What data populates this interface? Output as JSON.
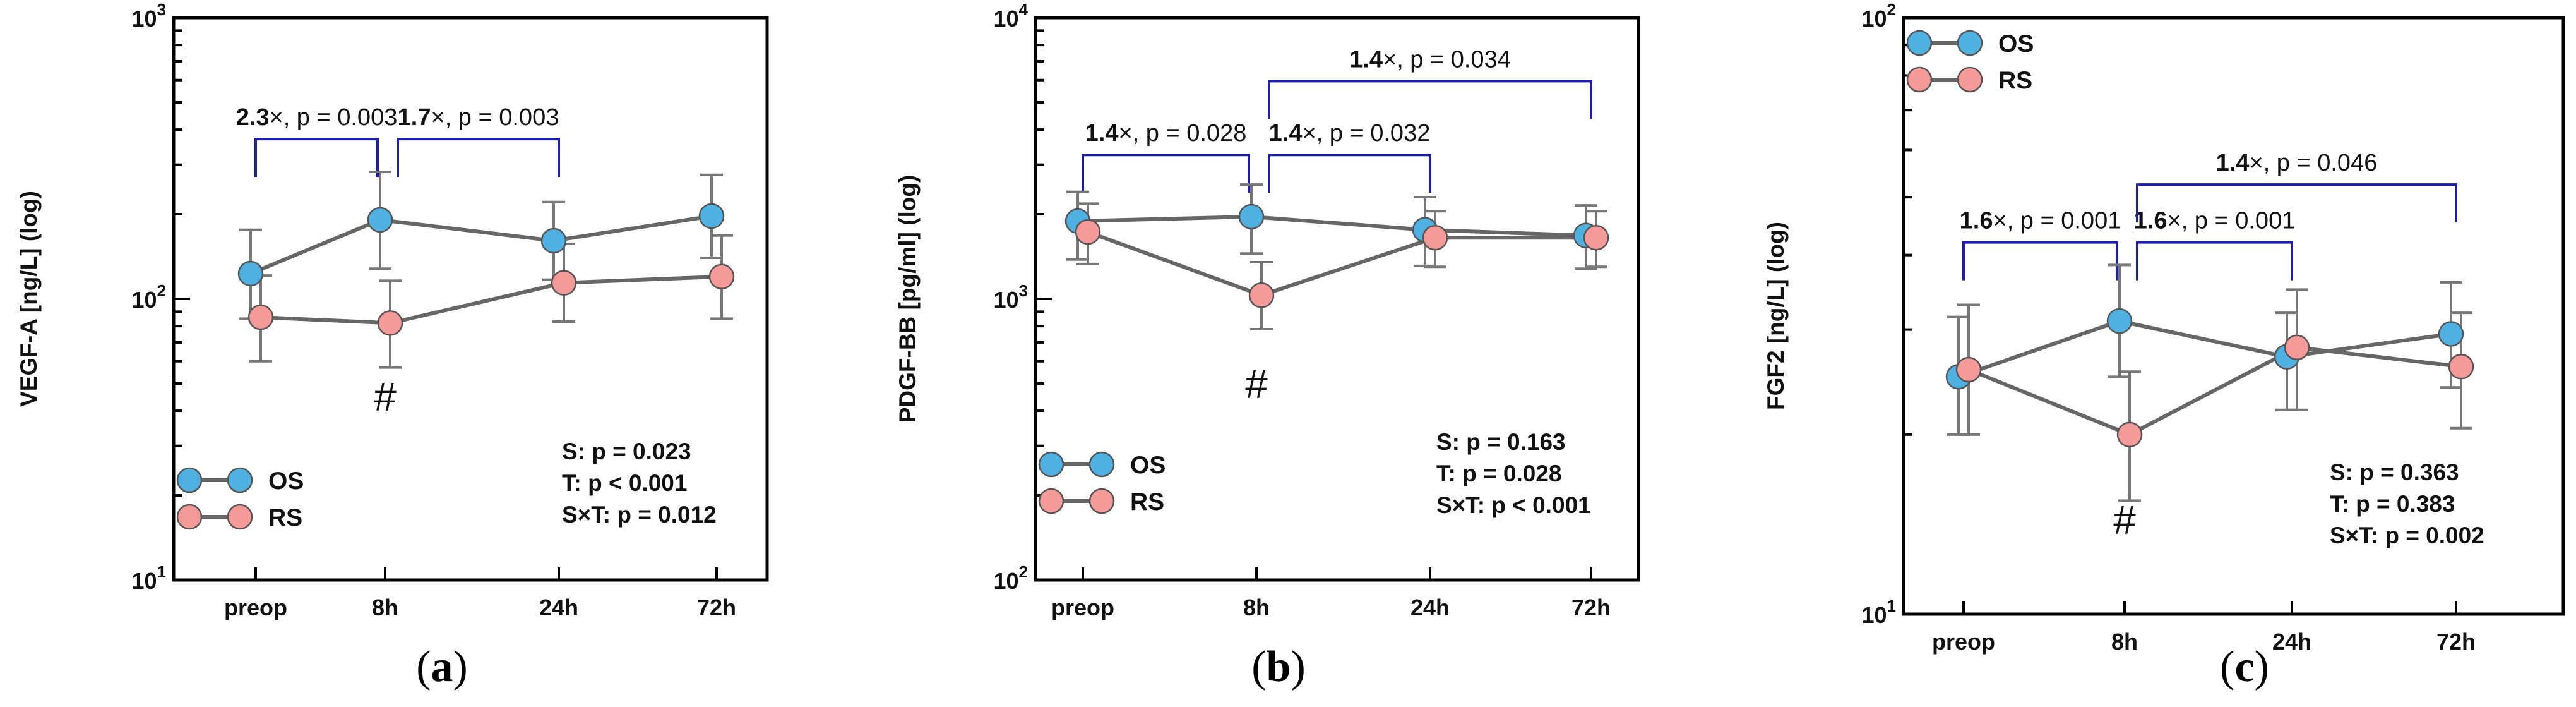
{
  "colors": {
    "OS": "#4fb0e2",
    "RS": "#f49a98",
    "bracket": "#1f1fa5",
    "line": "#666666"
  },
  "chart_data": [
    {
      "type": "line",
      "panel_label": "a",
      "ylabel": "VEGF-A [ng/L] (log)",
      "yscale": "log",
      "ylim": [
        10,
        1000
      ],
      "yticks": [
        {
          "v": 10,
          "b": "10",
          "e": "1"
        },
        {
          "v": 100,
          "b": "10",
          "e": "2"
        },
        {
          "v": 1000,
          "b": "10",
          "e": "3"
        }
      ],
      "categories": [
        "preop",
        "8h",
        "24h",
        "72h"
      ],
      "series": [
        {
          "name": "OS",
          "values": [
            123,
            191,
            161,
            197
          ],
          "err_low": [
            85,
            128,
            117,
            140
          ],
          "err_high": [
            176,
            283,
            221,
            276
          ]
        },
        {
          "name": "RS",
          "values": [
            86,
            82,
            114,
            120
          ],
          "err_low": [
            60,
            57,
            83,
            85
          ],
          "err_high": [
            121,
            116,
            157,
            168
          ]
        }
      ],
      "stats": [
        "S: p = 0.023",
        "T: p < 0.001",
        "S×T: p = 0.012"
      ],
      "legend": [
        "OS",
        "RS"
      ],
      "legend_position": "lower-left",
      "significance": [
        {
          "from": 0,
          "to": 1,
          "fold": "2.3",
          "p": ", p = 0.003",
          "y": 370
        },
        {
          "from": 1,
          "to": 2,
          "fold": "1.7",
          "p": ", p = 0.003",
          "y": 370
        }
      ],
      "hash_marker": {
        "category": "8h",
        "text": "#"
      }
    },
    {
      "type": "line",
      "panel_label": "b",
      "ylabel": "PDGF-BB [pg/ml] (log)",
      "yscale": "log",
      "ylim": [
        100,
        10000
      ],
      "yticks": [
        {
          "v": 100,
          "b": "10",
          "e": "2"
        },
        {
          "v": 1000,
          "b": "10",
          "e": "3"
        },
        {
          "v": 10000,
          "b": "10",
          "e": "4"
        }
      ],
      "categories": [
        "preop",
        "8h",
        "24h",
        "72h"
      ],
      "series": [
        {
          "name": "OS",
          "values": [
            1890,
            1960,
            1760,
            1680
          ],
          "err_low": [
            1380,
            1450,
            1310,
            1280
          ],
          "err_high": [
            2400,
            2550,
            2300,
            2150
          ]
        },
        {
          "name": "RS",
          "values": [
            1730,
            1030,
            1650,
            1650
          ],
          "err_low": [
            1330,
            780,
            1300,
            1300
          ],
          "err_high": [
            2180,
            1350,
            2050,
            2050
          ]
        }
      ],
      "stats": [
        "S: p = 0.163",
        "T: p = 0.028",
        "S×T: p < 0.001"
      ],
      "legend": [
        "OS",
        "RS"
      ],
      "legend_position": "lower-left",
      "significance": [
        {
          "from": 0,
          "to": 1,
          "fold": "1.4",
          "p": ", p = 0.028",
          "y": 3250
        },
        {
          "from": 1,
          "to": 2,
          "fold": "1.4",
          "p": ", p = 0.032",
          "y": 3250
        },
        {
          "from": 1,
          "to": 3,
          "fold": "1.4",
          "p": ", p = 0.034",
          "y": 5950
        }
      ],
      "hash_marker": {
        "category": "8h",
        "text": "#"
      }
    },
    {
      "type": "line",
      "panel_label": "c",
      "ylabel": "FGF2 [ng/L] (log)",
      "yscale": "log",
      "ylim": [
        10,
        100
      ],
      "yticks": [
        {
          "v": 10,
          "b": "10",
          "e": "1"
        },
        {
          "v": 100,
          "b": "10",
          "e": "2"
        }
      ],
      "categories": [
        "preop",
        "8h",
        "24h",
        "72h"
      ],
      "series": [
        {
          "name": "OS",
          "values": [
            25,
            31,
            27,
            29.5
          ],
          "err_low": [
            20,
            25,
            22,
            24
          ],
          "err_high": [
            31.5,
            38.5,
            32,
            36
          ]
        },
        {
          "name": "RS",
          "values": [
            25.7,
            20,
            28,
            26
          ],
          "err_low": [
            20,
            15.5,
            22,
            20.5
          ],
          "err_high": [
            33,
            25.5,
            35,
            32
          ]
        }
      ],
      "stats": [
        "S: p = 0.363",
        "T: p = 0.383",
        "S×T: p = 0.002"
      ],
      "legend": [
        "OS",
        "RS"
      ],
      "legend_position": "upper-left",
      "significance": [
        {
          "from": 0,
          "to": 1,
          "fold": "1.6",
          "p": ", p = 0.001",
          "y": 42
        },
        {
          "from": 1,
          "to": 2,
          "fold": "1.6",
          "p": ", p = 0.001",
          "y": 42
        },
        {
          "from": 1,
          "to": 3,
          "fold": "1.4",
          "p": ", p = 0.046",
          "y": 52.5
        }
      ],
      "hash_marker": {
        "category": "8h",
        "text": "#"
      }
    }
  ]
}
